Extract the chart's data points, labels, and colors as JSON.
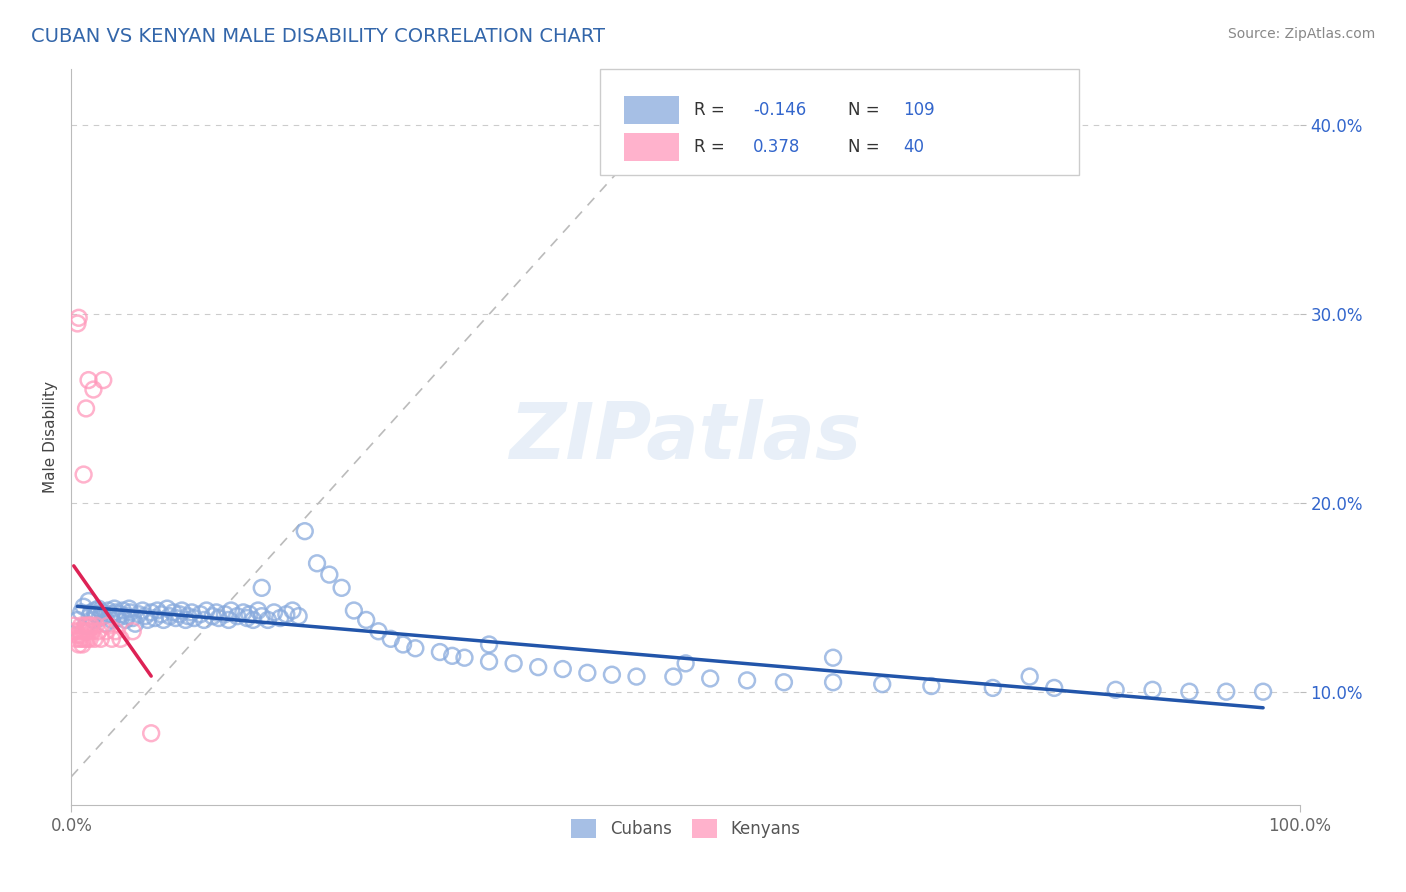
{
  "title": "CUBAN VS KENYAN MALE DISABILITY CORRELATION CHART",
  "source": "Source: ZipAtlas.com",
  "ylabel": "Male Disability",
  "xlim": [
    0.0,
    1.0
  ],
  "ylim": [
    0.04,
    0.43
  ],
  "ytick_labels": [
    "10.0%",
    "20.0%",
    "30.0%",
    "40.0%"
  ],
  "ytick_values": [
    0.1,
    0.2,
    0.3,
    0.4
  ],
  "cubans_R": "-0.146",
  "cubans_N": "109",
  "kenyans_R": "0.378",
  "kenyans_N": "40",
  "blue_scatter_color": "#88AADD",
  "pink_scatter_color": "#FF99BB",
  "blue_line_color": "#2255AA",
  "pink_line_color": "#DD2255",
  "legend_text_color": "#3366CC",
  "title_color": "#3366AA",
  "watermark": "ZIPatlas",
  "cubans_x": [
    0.005,
    0.008,
    0.01,
    0.012,
    0.014,
    0.015,
    0.016,
    0.018,
    0.019,
    0.02,
    0.022,
    0.023,
    0.025,
    0.026,
    0.028,
    0.03,
    0.032,
    0.033,
    0.035,
    0.036,
    0.038,
    0.04,
    0.042,
    0.044,
    0.045,
    0.047,
    0.048,
    0.05,
    0.052,
    0.055,
    0.058,
    0.06,
    0.062,
    0.065,
    0.068,
    0.07,
    0.073,
    0.075,
    0.078,
    0.08,
    0.083,
    0.085,
    0.088,
    0.09,
    0.093,
    0.095,
    0.098,
    0.1,
    0.105,
    0.108,
    0.11,
    0.115,
    0.118,
    0.12,
    0.125,
    0.128,
    0.13,
    0.135,
    0.14,
    0.143,
    0.145,
    0.148,
    0.152,
    0.155,
    0.16,
    0.165,
    0.17,
    0.175,
    0.18,
    0.185,
    0.19,
    0.2,
    0.21,
    0.22,
    0.23,
    0.24,
    0.25,
    0.26,
    0.27,
    0.28,
    0.3,
    0.31,
    0.32,
    0.34,
    0.36,
    0.38,
    0.4,
    0.42,
    0.44,
    0.46,
    0.49,
    0.52,
    0.55,
    0.58,
    0.62,
    0.66,
    0.7,
    0.75,
    0.8,
    0.85,
    0.88,
    0.91,
    0.94,
    0.97,
    0.155,
    0.34,
    0.5,
    0.62,
    0.78
  ],
  "cubans_y": [
    0.138,
    0.142,
    0.145,
    0.135,
    0.148,
    0.14,
    0.142,
    0.138,
    0.143,
    0.141,
    0.144,
    0.139,
    0.142,
    0.14,
    0.136,
    0.143,
    0.141,
    0.138,
    0.144,
    0.142,
    0.139,
    0.141,
    0.143,
    0.138,
    0.14,
    0.144,
    0.142,
    0.139,
    0.136,
    0.141,
    0.143,
    0.14,
    0.138,
    0.142,
    0.139,
    0.143,
    0.141,
    0.138,
    0.144,
    0.14,
    0.142,
    0.139,
    0.141,
    0.143,
    0.138,
    0.14,
    0.142,
    0.139,
    0.141,
    0.138,
    0.143,
    0.14,
    0.142,
    0.139,
    0.141,
    0.138,
    0.143,
    0.14,
    0.142,
    0.139,
    0.141,
    0.138,
    0.143,
    0.14,
    0.138,
    0.142,
    0.139,
    0.141,
    0.143,
    0.14,
    0.185,
    0.168,
    0.162,
    0.155,
    0.143,
    0.138,
    0.132,
    0.128,
    0.125,
    0.123,
    0.121,
    0.119,
    0.118,
    0.116,
    0.115,
    0.113,
    0.112,
    0.11,
    0.109,
    0.108,
    0.108,
    0.107,
    0.106,
    0.105,
    0.105,
    0.104,
    0.103,
    0.102,
    0.102,
    0.101,
    0.101,
    0.1,
    0.1,
    0.1,
    0.155,
    0.125,
    0.115,
    0.118,
    0.108
  ],
  "kenyans_x": [
    0.002,
    0.003,
    0.004,
    0.005,
    0.005,
    0.006,
    0.006,
    0.007,
    0.007,
    0.008,
    0.008,
    0.009,
    0.009,
    0.01,
    0.01,
    0.011,
    0.011,
    0.012,
    0.012,
    0.013,
    0.013,
    0.014,
    0.014,
    0.015,
    0.015,
    0.016,
    0.017,
    0.018,
    0.019,
    0.02,
    0.022,
    0.024,
    0.026,
    0.028,
    0.03,
    0.033,
    0.036,
    0.04,
    0.05,
    0.065
  ],
  "kenyans_y": [
    0.135,
    0.132,
    0.128,
    0.295,
    0.13,
    0.298,
    0.125,
    0.132,
    0.128,
    0.135,
    0.13,
    0.128,
    0.125,
    0.132,
    0.215,
    0.135,
    0.128,
    0.132,
    0.25,
    0.135,
    0.128,
    0.132,
    0.265,
    0.135,
    0.128,
    0.135,
    0.132,
    0.26,
    0.128,
    0.135,
    0.132,
    0.128,
    0.265,
    0.132,
    0.135,
    0.128,
    0.132,
    0.128,
    0.132,
    0.078
  ]
}
